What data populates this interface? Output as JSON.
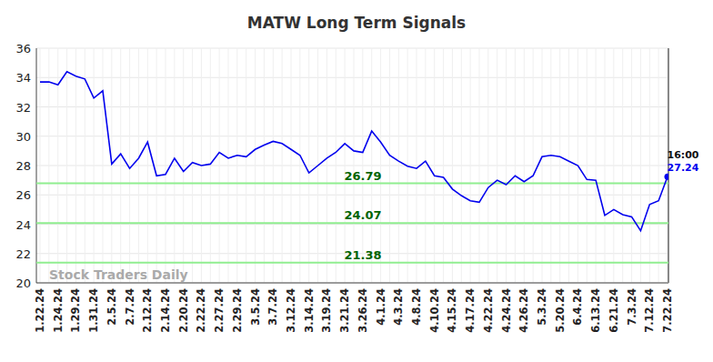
{
  "chart_data": {
    "type": "line",
    "title": "MATW Long Term Signals",
    "categories": [
      "1.22.24",
      null,
      "1.24.24",
      null,
      "1.29.24",
      null,
      "1.31.24",
      null,
      "2.5.24",
      null,
      "2.7.24",
      null,
      "2.12.24",
      null,
      "2.14.24",
      null,
      "2.20.24",
      null,
      "2.22.24",
      null,
      "2.27.24",
      null,
      "2.29.24",
      null,
      "3.5.24",
      null,
      "3.7.24",
      null,
      "3.12.24",
      null,
      "3.14.24",
      null,
      "3.19.24",
      null,
      "3.21.24",
      null,
      "3.26.24",
      null,
      "4.1.24",
      null,
      "4.3.24",
      null,
      "4.8.24",
      null,
      "4.10.24",
      null,
      "4.15.24",
      null,
      "4.17.24",
      null,
      "4.22.24",
      null,
      "4.24.24",
      null,
      "4.26.24",
      null,
      "5.3.24",
      null,
      "5.20.24",
      null,
      "6.4.24",
      null,
      "6.13.24",
      null,
      "6.21.24",
      null,
      "7.3.24",
      null,
      "7.12.24",
      null,
      "7.22.24"
    ],
    "values": [
      33.7,
      33.7,
      33.5,
      34.4,
      34.1,
      33.9,
      32.6,
      33.1,
      28.1,
      28.8,
      27.8,
      28.5,
      29.6,
      27.3,
      27.4,
      28.5,
      27.6,
      28.2,
      28.0,
      28.1,
      28.9,
      28.5,
      28.7,
      28.6,
      29.1,
      29.4,
      29.65,
      29.5,
      29.1,
      28.7,
      27.5,
      28.0,
      28.5,
      28.9,
      29.5,
      29.0,
      28.9,
      30.35,
      29.6,
      28.7,
      28.3,
      27.95,
      27.8,
      28.3,
      27.3,
      27.2,
      26.4,
      25.95,
      25.6,
      25.5,
      26.5,
      27.0,
      26.7,
      27.3,
      26.9,
      27.3,
      28.6,
      28.7,
      28.6,
      28.3,
      28.0,
      27.05,
      27.0,
      24.6,
      25.0,
      24.65,
      24.5,
      23.55,
      25.35,
      25.6,
      27.24
    ],
    "color": "#0000ee",
    "signal_levels": [
      26.79,
      24.07,
      21.38
    ],
    "signal_color": "#90ee90",
    "signal_label_color": "#006400",
    "last_time": "16:00",
    "watermark": "Stock Traders Daily",
    "ylim": [
      20,
      36
    ],
    "yticks": [
      20,
      22,
      24,
      26,
      28,
      30,
      32,
      34,
      36
    ],
    "grid": true
  }
}
